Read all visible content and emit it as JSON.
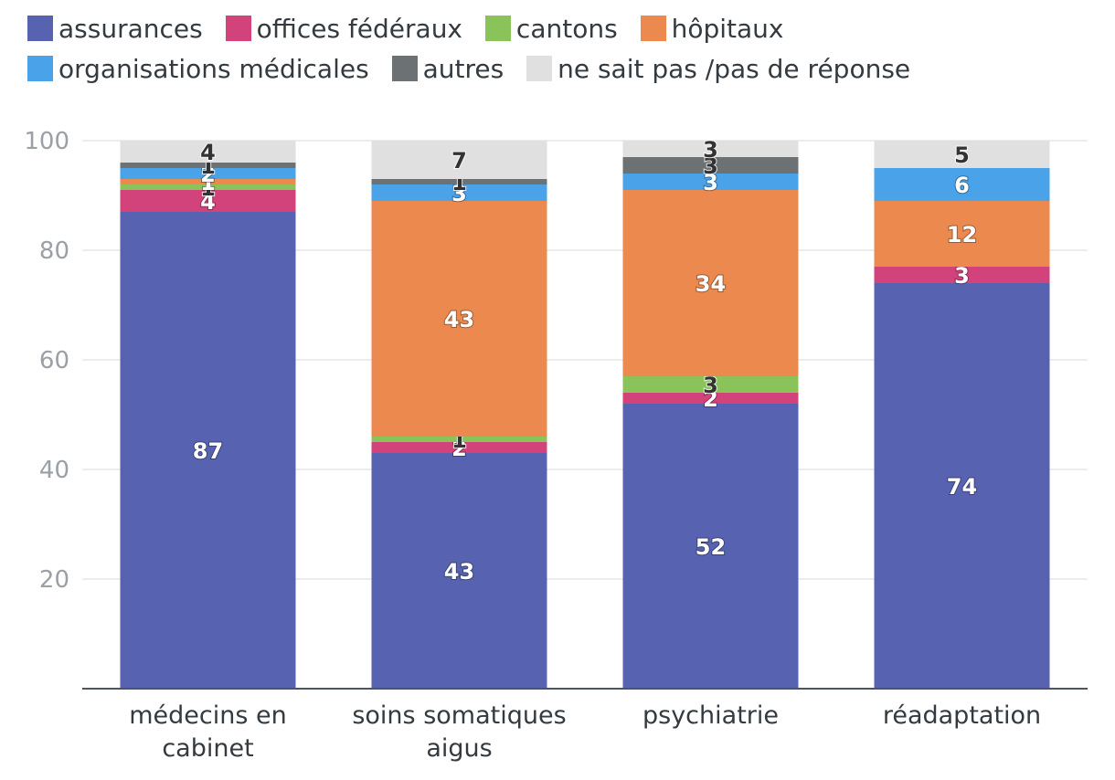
{
  "chart_data": {
    "type": "bar",
    "stacked": true,
    "categories": [
      [
        "médecins en",
        "cabinet"
      ],
      [
        "soins somatiques",
        "aigus"
      ],
      [
        "psychiatrie"
      ],
      [
        "réadaptation"
      ]
    ],
    "series": [
      {
        "name": "assurances",
        "color": "#5763b1",
        "label_color": "#ffffff",
        "values": [
          87,
          43,
          52,
          74
        ]
      },
      {
        "name": "offices fédéraux",
        "color": "#d2427b",
        "label_color": "#ffffff",
        "values": [
          4,
          2,
          2,
          3
        ]
      },
      {
        "name": "cantons",
        "color": "#8bc35b",
        "label_color": "#333333",
        "values": [
          1,
          1,
          3,
          0
        ]
      },
      {
        "name": "hôpitaux",
        "color": "#eb894e",
        "label_color": "#ffffff",
        "values": [
          1,
          43,
          34,
          12
        ]
      },
      {
        "name": "organisations médicales",
        "color": "#4aa2e9",
        "label_color": "#ffffff",
        "values": [
          2,
          3,
          3,
          6
        ]
      },
      {
        "name": "autres",
        "color": "#6c7173",
        "label_color": "#333333",
        "values": [
          1,
          1,
          3,
          0
        ]
      },
      {
        "name": "ne sait pas /pas de réponse",
        "color": "#e0e0e0",
        "label_color": "#333333",
        "values": [
          4,
          7,
          3,
          5
        ]
      }
    ],
    "yticks": [
      20,
      40,
      60,
      80,
      100
    ],
    "ylim": [
      0,
      100
    ],
    "grid": true,
    "legend_position": "top"
  }
}
